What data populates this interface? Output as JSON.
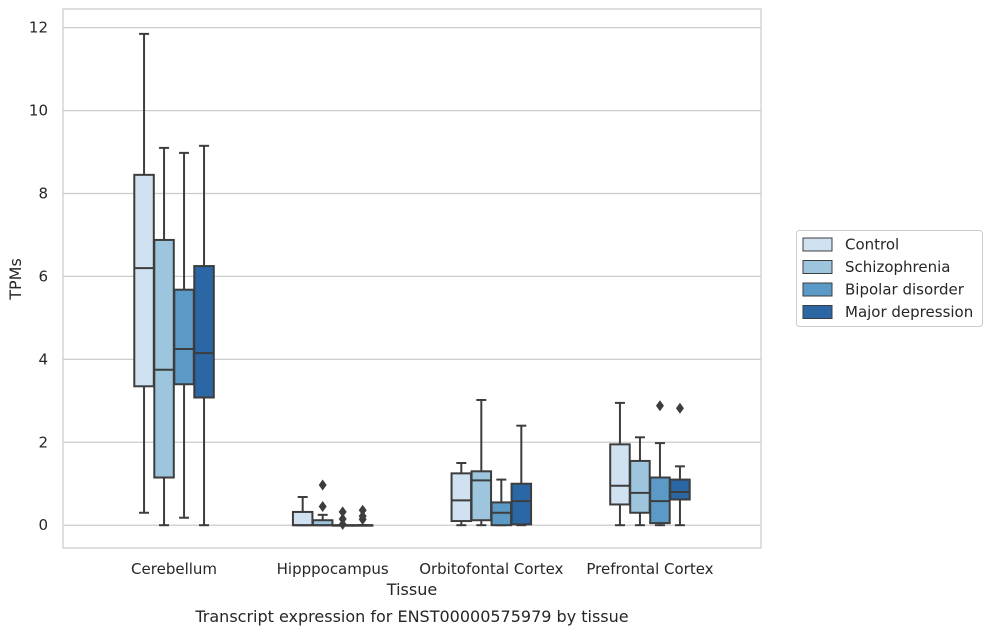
{
  "chart_data": {
    "type": "box",
    "title": "",
    "xlabel": "Tissue",
    "ylabel": "TPMs",
    "caption": "Transcript expression for ENST00000575979 by tissue",
    "ylim": [
      -0.55,
      12.45
    ],
    "yticks": [
      "0",
      "2",
      "4",
      "6",
      "8",
      "10",
      "12"
    ],
    "grid": "horizontal",
    "legend_placement": "right",
    "categories": [
      "Cerebellum",
      "Hipppocampus",
      "Orbitofontal Cortex",
      "Prefrontal Cortex"
    ],
    "series": [
      {
        "name": "Control",
        "color": "#d0e1f2",
        "boxes": [
          {
            "min": 0.3,
            "q1": 3.35,
            "median": 6.2,
            "q3": 8.45,
            "max": 11.85,
            "outliers": []
          },
          {
            "min": 0.0,
            "q1": 0.0,
            "median": 0.0,
            "q3": 0.32,
            "max": 0.68,
            "outliers": []
          },
          {
            "min": 0.0,
            "q1": 0.1,
            "median": 0.6,
            "q3": 1.25,
            "max": 1.5,
            "outliers": []
          },
          {
            "min": 0.0,
            "q1": 0.5,
            "median": 0.95,
            "q3": 1.95,
            "max": 2.95,
            "outliers": []
          }
        ]
      },
      {
        "name": "Schizophrenia",
        "color": "#9dc5de",
        "boxes": [
          {
            "min": 0.0,
            "q1": 1.15,
            "median": 3.75,
            "q3": 6.88,
            "max": 9.1,
            "outliers": []
          },
          {
            "min": 0.0,
            "q1": 0.0,
            "median": 0.0,
            "q3": 0.12,
            "max": 0.25,
            "outliers": [
              0.45,
              0.97
            ]
          },
          {
            "min": 0.0,
            "q1": 0.12,
            "median": 1.08,
            "q3": 1.3,
            "max": 3.02,
            "outliers": []
          },
          {
            "min": 0.0,
            "q1": 0.3,
            "median": 0.78,
            "q3": 1.55,
            "max": 2.12,
            "outliers": []
          }
        ]
      },
      {
        "name": "Bipolar disorder",
        "color": "#5b9ac7",
        "boxes": [
          {
            "min": 0.18,
            "q1": 3.4,
            "median": 4.25,
            "q3": 5.68,
            "max": 8.98,
            "outliers": []
          },
          {
            "min": 0.0,
            "q1": 0.0,
            "median": 0.0,
            "q3": 0.0,
            "max": 0.0,
            "outliers": [
              0.02,
              0.15,
              0.32
            ]
          },
          {
            "min": 0.0,
            "q1": 0.0,
            "median": 0.3,
            "q3": 0.55,
            "max": 1.1,
            "outliers": []
          },
          {
            "min": 0.0,
            "q1": 0.05,
            "median": 0.58,
            "q3": 1.15,
            "max": 1.98,
            "outliers": [
              2.88
            ]
          }
        ]
      },
      {
        "name": "Major depression",
        "color": "#2a67a4",
        "boxes": [
          {
            "min": 0.0,
            "q1": 3.08,
            "median": 4.15,
            "q3": 6.25,
            "max": 9.15,
            "outliers": []
          },
          {
            "min": 0.0,
            "q1": 0.0,
            "median": 0.0,
            "q3": 0.0,
            "max": 0.0,
            "outliers": [
              0.14,
              0.22,
              0.36
            ]
          },
          {
            "min": 0.0,
            "q1": 0.02,
            "median": 0.58,
            "q3": 1.0,
            "max": 2.4,
            "outliers": []
          },
          {
            "min": 0.0,
            "q1": 0.62,
            "median": 0.8,
            "q3": 1.1,
            "max": 1.42,
            "outliers": [
              2.82
            ]
          }
        ]
      }
    ]
  }
}
